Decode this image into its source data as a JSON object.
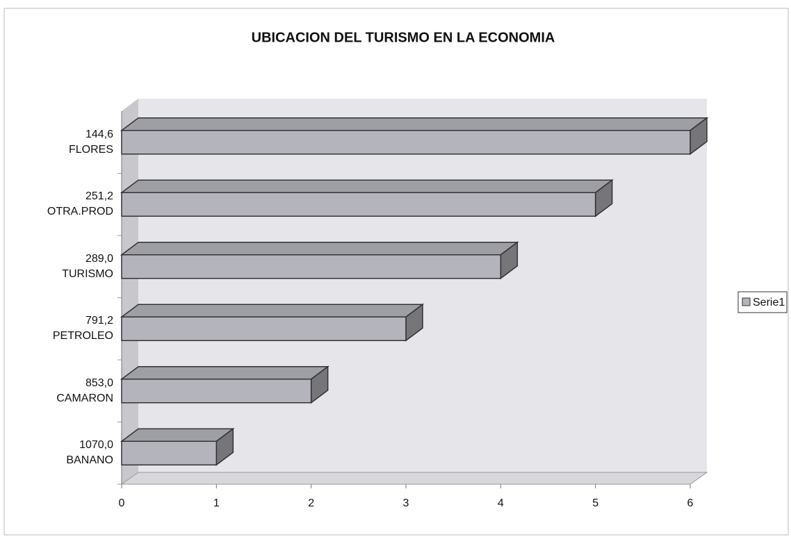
{
  "chart_data": {
    "type": "bar3d_h",
    "title": "UBICACION DEL TURISMO EN LA ECONOMIA",
    "categories": [
      "1070,0\nBANANO",
      "853,0\nCAMARON",
      "791,2\nPETROLEO",
      "289,0\nTURISMO",
      "251,2\nOTRA.PROD",
      "144,6\nFLORES"
    ],
    "series": [
      {
        "name": "Serie1",
        "color": "#b4b4bc",
        "values": [
          1,
          2,
          3,
          4,
          5,
          6
        ]
      }
    ],
    "xlim": [
      0,
      6
    ],
    "xticks": [
      0,
      1,
      2,
      3,
      4,
      5,
      6
    ],
    "legend": "right"
  }
}
